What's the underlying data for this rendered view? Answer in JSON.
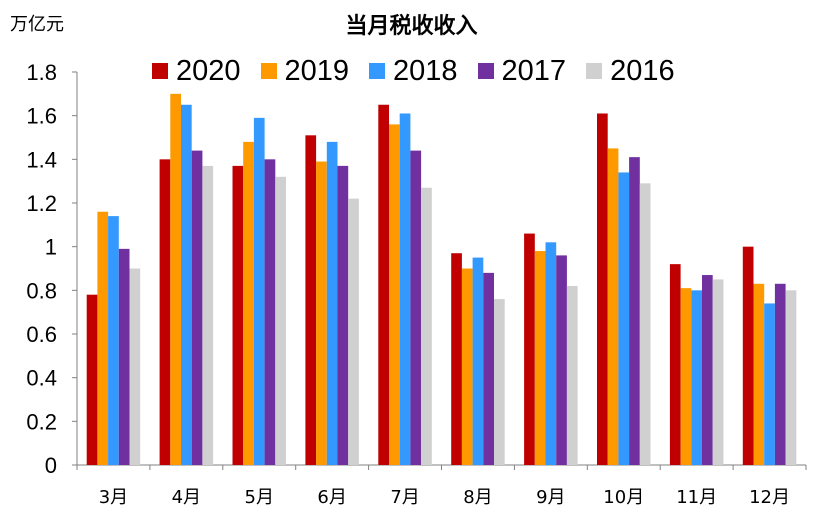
{
  "chart_data": {
    "type": "bar",
    "title": "当月税收收入",
    "unit_label": "万亿元",
    "categories": [
      "3月",
      "4月",
      "5月",
      "6月",
      "7月",
      "8月",
      "9月",
      "10月",
      "11月",
      "12月"
    ],
    "series": [
      {
        "name": "2020",
        "color": "#c00000",
        "values": [
          0.78,
          1.4,
          1.37,
          1.51,
          1.65,
          0.97,
          1.06,
          1.61,
          0.92,
          1.0
        ]
      },
      {
        "name": "2019",
        "color": "#ff9900",
        "values": [
          1.16,
          1.7,
          1.48,
          1.39,
          1.56,
          0.9,
          0.98,
          1.45,
          0.81,
          0.83
        ]
      },
      {
        "name": "2018",
        "color": "#3399ff",
        "values": [
          1.14,
          1.65,
          1.59,
          1.48,
          1.61,
          0.95,
          1.02,
          1.34,
          0.8,
          0.74
        ]
      },
      {
        "name": "2017",
        "color": "#7030a0",
        "values": [
          0.99,
          1.44,
          1.4,
          1.37,
          1.44,
          0.88,
          0.96,
          1.41,
          0.87,
          0.83
        ]
      },
      {
        "name": "2016",
        "color": "#d0d0d0",
        "values": [
          0.9,
          1.37,
          1.32,
          1.22,
          1.27,
          0.76,
          0.82,
          1.29,
          0.85,
          0.8
        ]
      }
    ],
    "ylim": [
      0,
      1.8
    ],
    "yticks": [
      0,
      0.2,
      0.4,
      0.6,
      0.8,
      1,
      1.2,
      1.4,
      1.6,
      1.8
    ],
    "grid": false,
    "legend_position": "top"
  }
}
